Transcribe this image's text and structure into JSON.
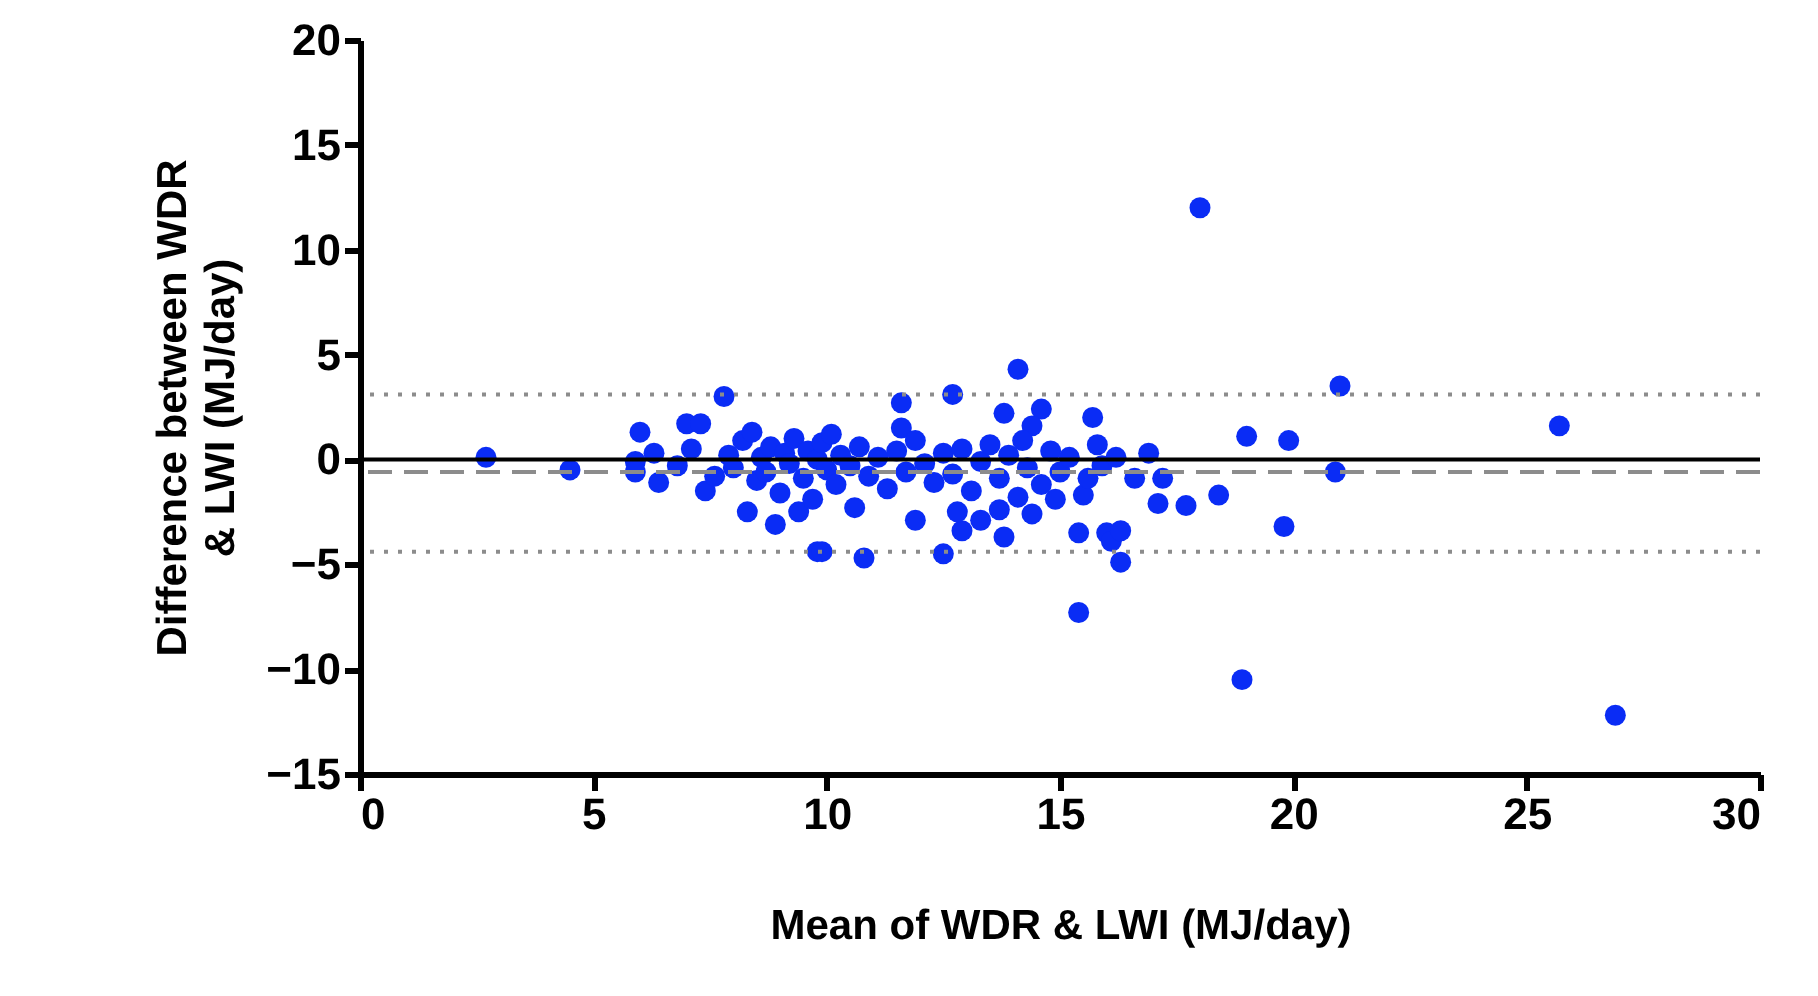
{
  "chart_data": {
    "type": "scatter",
    "xlabel": "Mean of WDR & LWI (MJ/day)",
    "ylabel": "Difference between WDR & LWI (MJ/day)",
    "marker": "circle",
    "grid": false,
    "xlim": [
      0,
      30
    ],
    "xticks": [
      0,
      5,
      10,
      15,
      20,
      25,
      30
    ],
    "ylim": [
      -15,
      20
    ],
    "yticks": [
      -15,
      -10,
      -5,
      0,
      5,
      10,
      15,
      20
    ],
    "series": [
      {
        "color": "#0a2cf5",
        "x": [
          2.7,
          4.5,
          5.9,
          5.9,
          6.0,
          6.4,
          7.0,
          7.3,
          7.4,
          7.8,
          8.3,
          8.9,
          9.4,
          9.8,
          14.1,
          12.7,
          11.6,
          11.6,
          13.8,
          14.6,
          14.4,
          15.7,
          15.8,
          16.9,
          17.2,
          16.6,
          17.1,
          17.7,
          18.4,
          9.9,
          10.8,
          12.5,
          12.9,
          13.3,
          13.8,
          13.7,
          15.4,
          16.0,
          16.3,
          16.1,
          10.6,
          11.9,
          12.8,
          15.5,
          14.9,
          14.4,
          15.4,
          16.3,
          18.0,
          21.0,
          19.0,
          19.9,
          25.7,
          20.9,
          19.8,
          18.9,
          26.9,
          6.3,
          6.8,
          7.1,
          7.6,
          7.9,
          8.0,
          8.2,
          8.4,
          8.5,
          8.6,
          8.7,
          8.8,
          9.0,
          9.1,
          9.2,
          9.3,
          9.5,
          9.6,
          9.7,
          9.8,
          9.9,
          10.0,
          10.1,
          10.2,
          10.3,
          10.5,
          10.7,
          10.9,
          11.1,
          11.3,
          11.5,
          11.7,
          11.9,
          12.1,
          12.3,
          12.5,
          12.7,
          12.9,
          13.1,
          13.3,
          13.5,
          13.7,
          13.9,
          14.1,
          14.2,
          14.3,
          14.6,
          14.8,
          15.0,
          15.2,
          15.6,
          15.9,
          16.2
        ],
        "values": [
          0.1,
          -0.5,
          -0.1,
          -0.6,
          1.3,
          -1.1,
          1.7,
          1.7,
          -1.5,
          3.0,
          -2.5,
          -3.1,
          -2.5,
          -4.4,
          4.3,
          3.1,
          2.7,
          1.5,
          2.2,
          2.4,
          1.6,
          2.0,
          0.7,
          0.3,
          -0.9,
          -0.9,
          -2.1,
          -2.2,
          -1.7,
          -4.4,
          -4.7,
          -4.5,
          -3.4,
          -2.9,
          -3.7,
          -2.4,
          -3.5,
          -3.5,
          -4.9,
          -3.9,
          -2.3,
          -2.9,
          -2.5,
          -1.7,
          -1.9,
          -2.6,
          -7.3,
          -3.4,
          12.0,
          3.5,
          1.1,
          0.9,
          1.6,
          -0.6,
          -3.2,
          -10.5,
          -12.2,
          0.3,
          -0.3,
          0.5,
          -0.8,
          0.2,
          -0.4,
          0.9,
          1.3,
          -1.0,
          0.1,
          -0.6,
          0.6,
          -1.6,
          0.3,
          -0.2,
          1.0,
          -0.9,
          0.4,
          -1.9,
          0.0,
          0.8,
          -0.5,
          1.2,
          -1.2,
          0.2,
          -0.3,
          0.6,
          -0.8,
          0.1,
          -1.4,
          0.4,
          -0.6,
          0.9,
          -0.2,
          -1.1,
          0.3,
          -0.7,
          0.5,
          -1.5,
          -0.1,
          0.7,
          -0.9,
          0.2,
          -1.8,
          0.9,
          -0.4,
          -1.2,
          0.4,
          -0.6,
          0.1,
          -0.9,
          -0.3,
          0.1
        ]
      }
    ],
    "ref_lines": [
      {
        "axis": "y",
        "value": 0,
        "color": "#000000",
        "line_style": "solid"
      },
      {
        "axis": "y",
        "value": -0.6,
        "color": "#8c8c8c",
        "line_style": "dashed"
      },
      {
        "axis": "y",
        "value": 3.1,
        "color": "#8c8c8c",
        "line_style": "dotted"
      },
      {
        "axis": "y",
        "value": -4.4,
        "color": "#8c8c8c",
        "line_style": "dotted"
      }
    ]
  }
}
